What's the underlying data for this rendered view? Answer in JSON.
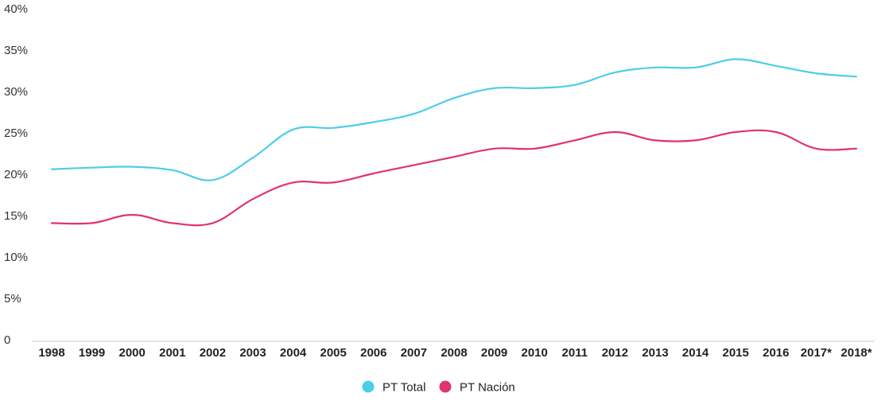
{
  "chart_data": {
    "type": "line",
    "title": "",
    "xlabel": "",
    "ylabel": "",
    "categories": [
      "1998",
      "1999",
      "2000",
      "2001",
      "2002",
      "2003",
      "2004",
      "2005",
      "2006",
      "2007",
      "2008",
      "2009",
      "2010",
      "2011",
      "2012",
      "2013",
      "2014",
      "2015",
      "2016",
      "2017*",
      "2018*"
    ],
    "y_ticks": [
      "0",
      "5%",
      "10%",
      "15%",
      "20%",
      "25%",
      "30%",
      "35%",
      "40%"
    ],
    "ylim": [
      0,
      40
    ],
    "grid": false,
    "legend_position": "bottom-center",
    "series": [
      {
        "name": "PT Total",
        "color": "#4dcdea",
        "values": [
          20.6,
          20.8,
          20.9,
          20.5,
          19.3,
          22.0,
          25.4,
          25.6,
          26.3,
          27.3,
          29.2,
          30.4,
          30.4,
          30.8,
          32.3,
          32.9,
          32.9,
          33.9,
          33.1,
          32.2,
          31.8
        ]
      },
      {
        "name": "PT Nación",
        "color": "#e0336f",
        "values": [
          14.1,
          14.1,
          15.1,
          14.1,
          14.1,
          17.0,
          19.0,
          19.0,
          20.1,
          21.1,
          22.1,
          23.1,
          23.1,
          24.1,
          25.1,
          24.1,
          24.1,
          25.1,
          25.1,
          23.1,
          23.1
        ]
      }
    ]
  }
}
